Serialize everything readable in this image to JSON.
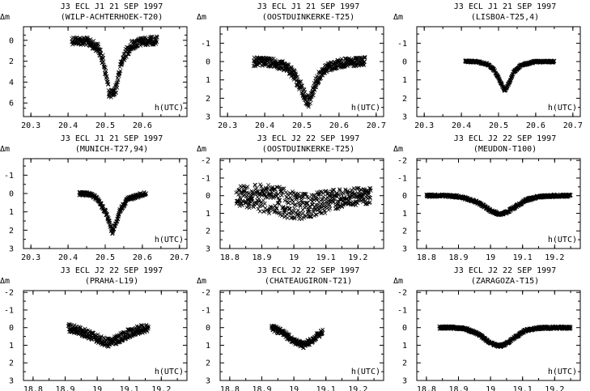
{
  "figure": {
    "units_y": "Δm",
    "units_x": "h(UTC)"
  },
  "chart_data": [
    {
      "type": "scatter",
      "title": "J3 ECL J1 21 SEP 1997",
      "subtitle": "(WILP-ACHTERHOEK-T20)",
      "ylabel": "Δm",
      "xlabel": "h(UTC)",
      "xlim": [
        20.28,
        20.72
      ],
      "ylim": [
        7.3,
        -1.3
      ],
      "xticks": [
        20.3,
        20.4,
        20.5,
        20.6
      ],
      "xtick_labels": [
        "20.3",
        "20.4",
        "20.5",
        "20.6"
      ],
      "yticks": [
        0,
        2,
        4,
        6
      ],
      "ytick_labels": [
        "0",
        "2",
        "4",
        "6"
      ],
      "marker": "x",
      "grid": false,
      "series": [
        {
          "x": [
            20.41,
            20.45,
            20.48,
            20.495,
            20.505,
            20.51,
            20.52,
            20.53,
            20.535,
            20.55,
            20.57,
            20.6,
            20.64
          ],
          "y": [
            0.0,
            0.1,
            0.7,
            2.0,
            3.8,
            5.0,
            5.2,
            4.5,
            3.4,
            1.5,
            0.5,
            0.1,
            0.0
          ],
          "spread": [
            0.8,
            0.8,
            0.9,
            1.0,
            1.2,
            1.0,
            0.8,
            1.0,
            1.2,
            1.0,
            0.9,
            0.8,
            0.8
          ]
        }
      ]
    },
    {
      "type": "scatter",
      "title": "J3 ECL J1 21 SEP 1997",
      "subtitle": "(OOSTDUINKERKE-T25)",
      "ylabel": "Δm",
      "xlabel": "h(UTC)",
      "xlim": [
        20.28,
        20.72
      ],
      "ylim": [
        3.0,
        -1.9
      ],
      "xticks": [
        20.3,
        20.4,
        20.5,
        20.6,
        20.7
      ],
      "xtick_labels": [
        "20.3",
        "20.4",
        "20.5",
        "20.6",
        "20.7"
      ],
      "yticks": [
        -1,
        0,
        1,
        2,
        3
      ],
      "ytick_labels": [
        "-1",
        "0",
        "1",
        "2",
        "3"
      ],
      "marker": "x",
      "grid": false,
      "series": [
        {
          "x": [
            20.37,
            20.42,
            20.46,
            20.48,
            20.5,
            20.51,
            20.52,
            20.53,
            20.54,
            20.56,
            20.6,
            20.67
          ],
          "y": [
            0.0,
            0.05,
            0.3,
            0.8,
            1.5,
            2.0,
            2.2,
            1.6,
            1.0,
            0.4,
            0.1,
            0.0
          ],
          "spread": [
            0.5,
            0.5,
            0.5,
            0.6,
            0.7,
            0.7,
            0.6,
            0.7,
            0.6,
            0.5,
            0.5,
            0.5
          ]
        }
      ]
    },
    {
      "type": "scatter",
      "title": "J3 ECL J1 21 SEP 1997",
      "subtitle": "(LISBOA-T25,4)",
      "ylabel": "Δm",
      "xlabel": "h(UTC)",
      "xlim": [
        20.28,
        20.72
      ],
      "ylim": [
        3.0,
        -1.9
      ],
      "xticks": [
        20.3,
        20.4,
        20.5,
        20.6,
        20.7
      ],
      "xtick_labels": [
        "20.3",
        "20.4",
        "20.5",
        "20.6",
        "20.7"
      ],
      "yticks": [
        -1,
        0,
        1,
        2,
        3
      ],
      "ytick_labels": [
        "-1",
        "0",
        "1",
        "2",
        "3"
      ],
      "marker": "x",
      "grid": false,
      "series": [
        {
          "x": [
            20.41,
            20.44,
            20.47,
            20.49,
            20.5,
            20.51,
            20.515,
            20.52,
            20.53,
            20.54,
            20.56,
            20.6,
            20.65
          ],
          "y": [
            0.0,
            0.0,
            0.15,
            0.5,
            0.9,
            1.3,
            1.55,
            1.5,
            1.1,
            0.6,
            0.2,
            0.0,
            0.0
          ],
          "spread": [
            0.12,
            0.12,
            0.12,
            0.12,
            0.12,
            0.12,
            0.12,
            0.12,
            0.12,
            0.12,
            0.12,
            0.12,
            0.12
          ]
        }
      ]
    },
    {
      "type": "scatter",
      "title": "J3 ECL J1 21 SEP 1997",
      "subtitle": "(MUNICH-T27,94)",
      "ylabel": "Δm",
      "xlabel": "h(UTC)",
      "xlim": [
        20.28,
        20.72
      ],
      "ylim": [
        3.0,
        -1.9
      ],
      "xticks": [
        20.3,
        20.4,
        20.5,
        20.6,
        20.7
      ],
      "xtick_labels": [
        "20.3",
        "20.4",
        "20.5",
        "20.6",
        "20.7"
      ],
      "yticks": [
        -1,
        0,
        1,
        2,
        3
      ],
      "ytick_labels": [
        "-1",
        "0",
        "1",
        "2",
        "3"
      ],
      "marker": "x",
      "grid": false,
      "series": [
        {
          "x": [
            20.43,
            20.46,
            20.48,
            20.5,
            20.51,
            20.515,
            20.52,
            20.53,
            20.54,
            20.56,
            20.6,
            20.61
          ],
          "y": [
            0.0,
            0.05,
            0.3,
            1.0,
            1.5,
            1.9,
            2.1,
            1.6,
            0.9,
            0.3,
            0.05,
            0.0
          ],
          "spread": [
            0.2,
            0.2,
            0.2,
            0.25,
            0.25,
            0.3,
            0.3,
            0.25,
            0.25,
            0.2,
            0.2,
            0.2
          ]
        }
      ]
    },
    {
      "type": "scatter",
      "title": "J3 ECL J2 22 SEP 1997",
      "subtitle": "(OOSTDUINKERKE-T25)",
      "ylabel": "Δm",
      "xlabel": "",
      "xlim": [
        18.77,
        19.28
      ],
      "ylim": [
        3.0,
        -2.1
      ],
      "xticks": [
        18.8,
        18.9,
        19.0,
        19.1,
        19.2
      ],
      "xtick_labels": [
        "18.8",
        "18.9",
        "19",
        "19.1",
        "19.2"
      ],
      "yticks": [
        -2,
        -1,
        0,
        1,
        2,
        3
      ],
      "ytick_labels": [
        "-2",
        "-1",
        "0",
        "1",
        "2",
        "3"
      ],
      "marker": "x",
      "grid": false,
      "series": [
        {
          "x": [
            18.82,
            18.86,
            18.9,
            18.95,
            19.0,
            19.03,
            19.06,
            19.1,
            19.15,
            19.2,
            19.24
          ],
          "y": [
            0.0,
            0.05,
            0.15,
            0.3,
            0.55,
            0.65,
            0.5,
            0.35,
            0.15,
            0.05,
            0.0
          ],
          "spread": [
            1.1,
            1.3,
            1.6,
            1.7,
            1.6,
            1.5,
            1.4,
            1.3,
            1.1,
            1.0,
            0.9
          ]
        }
      ]
    },
    {
      "type": "scatter",
      "title": "J3 ECL J2 22 SEP 1997",
      "subtitle": "(MEUDON-T100)",
      "ylabel": "Δm",
      "xlabel": "h(UTC)",
      "xlim": [
        18.77,
        19.28
      ],
      "ylim": [
        3.0,
        -2.1
      ],
      "xticks": [
        18.8,
        18.9,
        19.0,
        19.1,
        19.2
      ],
      "xtick_labels": [
        "18.8",
        "18.9",
        "19",
        "19.1",
        "19.2"
      ],
      "yticks": [
        -2,
        -1,
        0,
        1,
        2,
        3
      ],
      "ytick_labels": [
        "-2",
        "-1",
        "0",
        "1",
        "2",
        "3"
      ],
      "marker": "x",
      "grid": false,
      "series": [
        {
          "x": [
            18.8,
            18.85,
            18.9,
            18.95,
            18.98,
            19.0,
            19.02,
            19.03,
            19.05,
            19.08,
            19.11,
            19.15,
            19.2,
            19.25
          ],
          "y": [
            0.0,
            0.0,
            0.05,
            0.3,
            0.6,
            0.85,
            1.0,
            1.05,
            0.95,
            0.6,
            0.25,
            0.05,
            0.0,
            0.0
          ],
          "spread": [
            0.15,
            0.15,
            0.15,
            0.15,
            0.15,
            0.15,
            0.15,
            0.15,
            0.15,
            0.15,
            0.15,
            0.15,
            0.15,
            0.15
          ]
        }
      ]
    },
    {
      "type": "scatter",
      "title": "J3 ECL J2 22 SEP 1997",
      "subtitle": "(PRAHA-L19)",
      "ylabel": "Δm",
      "xlabel": "h(UTC)",
      "xlim": [
        18.77,
        19.28
      ],
      "ylim": [
        3.0,
        -2.1
      ],
      "xticks": [
        18.8,
        18.9,
        19.0,
        19.1,
        19.2
      ],
      "xtick_labels": [
        "18.8",
        "18.9",
        "19",
        "19.1",
        "19.2"
      ],
      "yticks": [
        -2,
        -1,
        0,
        1,
        2,
        3
      ],
      "ytick_labels": [
        "-2",
        "-1",
        "0",
        "1",
        "2",
        "3"
      ],
      "marker": "x",
      "grid": false,
      "series": [
        {
          "x": [
            18.91,
            18.94,
            18.97,
            19.0,
            19.02,
            19.04,
            19.06,
            19.09,
            19.12,
            19.16
          ],
          "y": [
            0.0,
            0.15,
            0.35,
            0.6,
            0.8,
            0.85,
            0.7,
            0.4,
            0.15,
            0.0
          ],
          "spread": [
            0.5,
            0.5,
            0.5,
            0.5,
            0.5,
            0.5,
            0.5,
            0.5,
            0.5,
            0.5
          ]
        }
      ]
    },
    {
      "type": "scatter",
      "title": "J3 ECL J2 22 SEP 1997",
      "subtitle": "(CHATEAUGIRON-T21)",
      "ylabel": "Δm",
      "xlabel": "h(UTC)",
      "xlim": [
        18.77,
        19.28
      ],
      "ylim": [
        3.0,
        -2.1
      ],
      "xticks": [
        18.8,
        18.9,
        19.0,
        19.1,
        19.2
      ],
      "xtick_labels": [
        "18.8",
        "18.9",
        "19",
        "19.1",
        "19.2"
      ],
      "yticks": [
        -2,
        -1,
        0,
        1,
        2,
        3
      ],
      "ytick_labels": [
        "-2",
        "-1",
        "0",
        "1",
        "2",
        "3"
      ],
      "marker": "x",
      "grid": false,
      "series": [
        {
          "x": [
            18.93,
            18.96,
            18.99,
            19.01,
            19.03,
            19.05,
            19.07,
            19.09
          ],
          "y": [
            0.0,
            0.25,
            0.6,
            0.85,
            1.0,
            0.8,
            0.5,
            0.25
          ],
          "spread": [
            0.35,
            0.35,
            0.35,
            0.35,
            0.35,
            0.35,
            0.35,
            0.35
          ]
        }
      ]
    },
    {
      "type": "scatter",
      "title": "J3 ECL J2 22 SEP 1997",
      "subtitle": "(ZARAGOZA-T15)",
      "ylabel": "Δm",
      "xlabel": "h(UTC)",
      "xlim": [
        18.77,
        19.28
      ],
      "ylim": [
        3.0,
        -2.1
      ],
      "xticks": [
        18.8,
        18.9,
        19.0,
        19.1,
        19.2
      ],
      "xtick_labels": [
        "18.8",
        "18.9",
        "19",
        "19.1",
        "19.2"
      ],
      "yticks": [
        -2,
        -1,
        0,
        1,
        2,
        3
      ],
      "ytick_labels": [
        "-2",
        "-1",
        "0",
        "1",
        "2",
        "3"
      ],
      "marker": "x",
      "grid": false,
      "series": [
        {
          "x": [
            18.84,
            18.88,
            18.92,
            18.96,
            18.99,
            19.01,
            19.03,
            19.05,
            19.08,
            19.11,
            19.15,
            19.2,
            19.25
          ],
          "y": [
            0.0,
            0.0,
            0.05,
            0.35,
            0.75,
            0.95,
            1.05,
            0.9,
            0.5,
            0.15,
            0.02,
            0.0,
            0.0
          ],
          "spread": [
            0.15,
            0.15,
            0.15,
            0.15,
            0.15,
            0.15,
            0.15,
            0.15,
            0.15,
            0.15,
            0.15,
            0.15,
            0.15
          ]
        }
      ]
    }
  ]
}
